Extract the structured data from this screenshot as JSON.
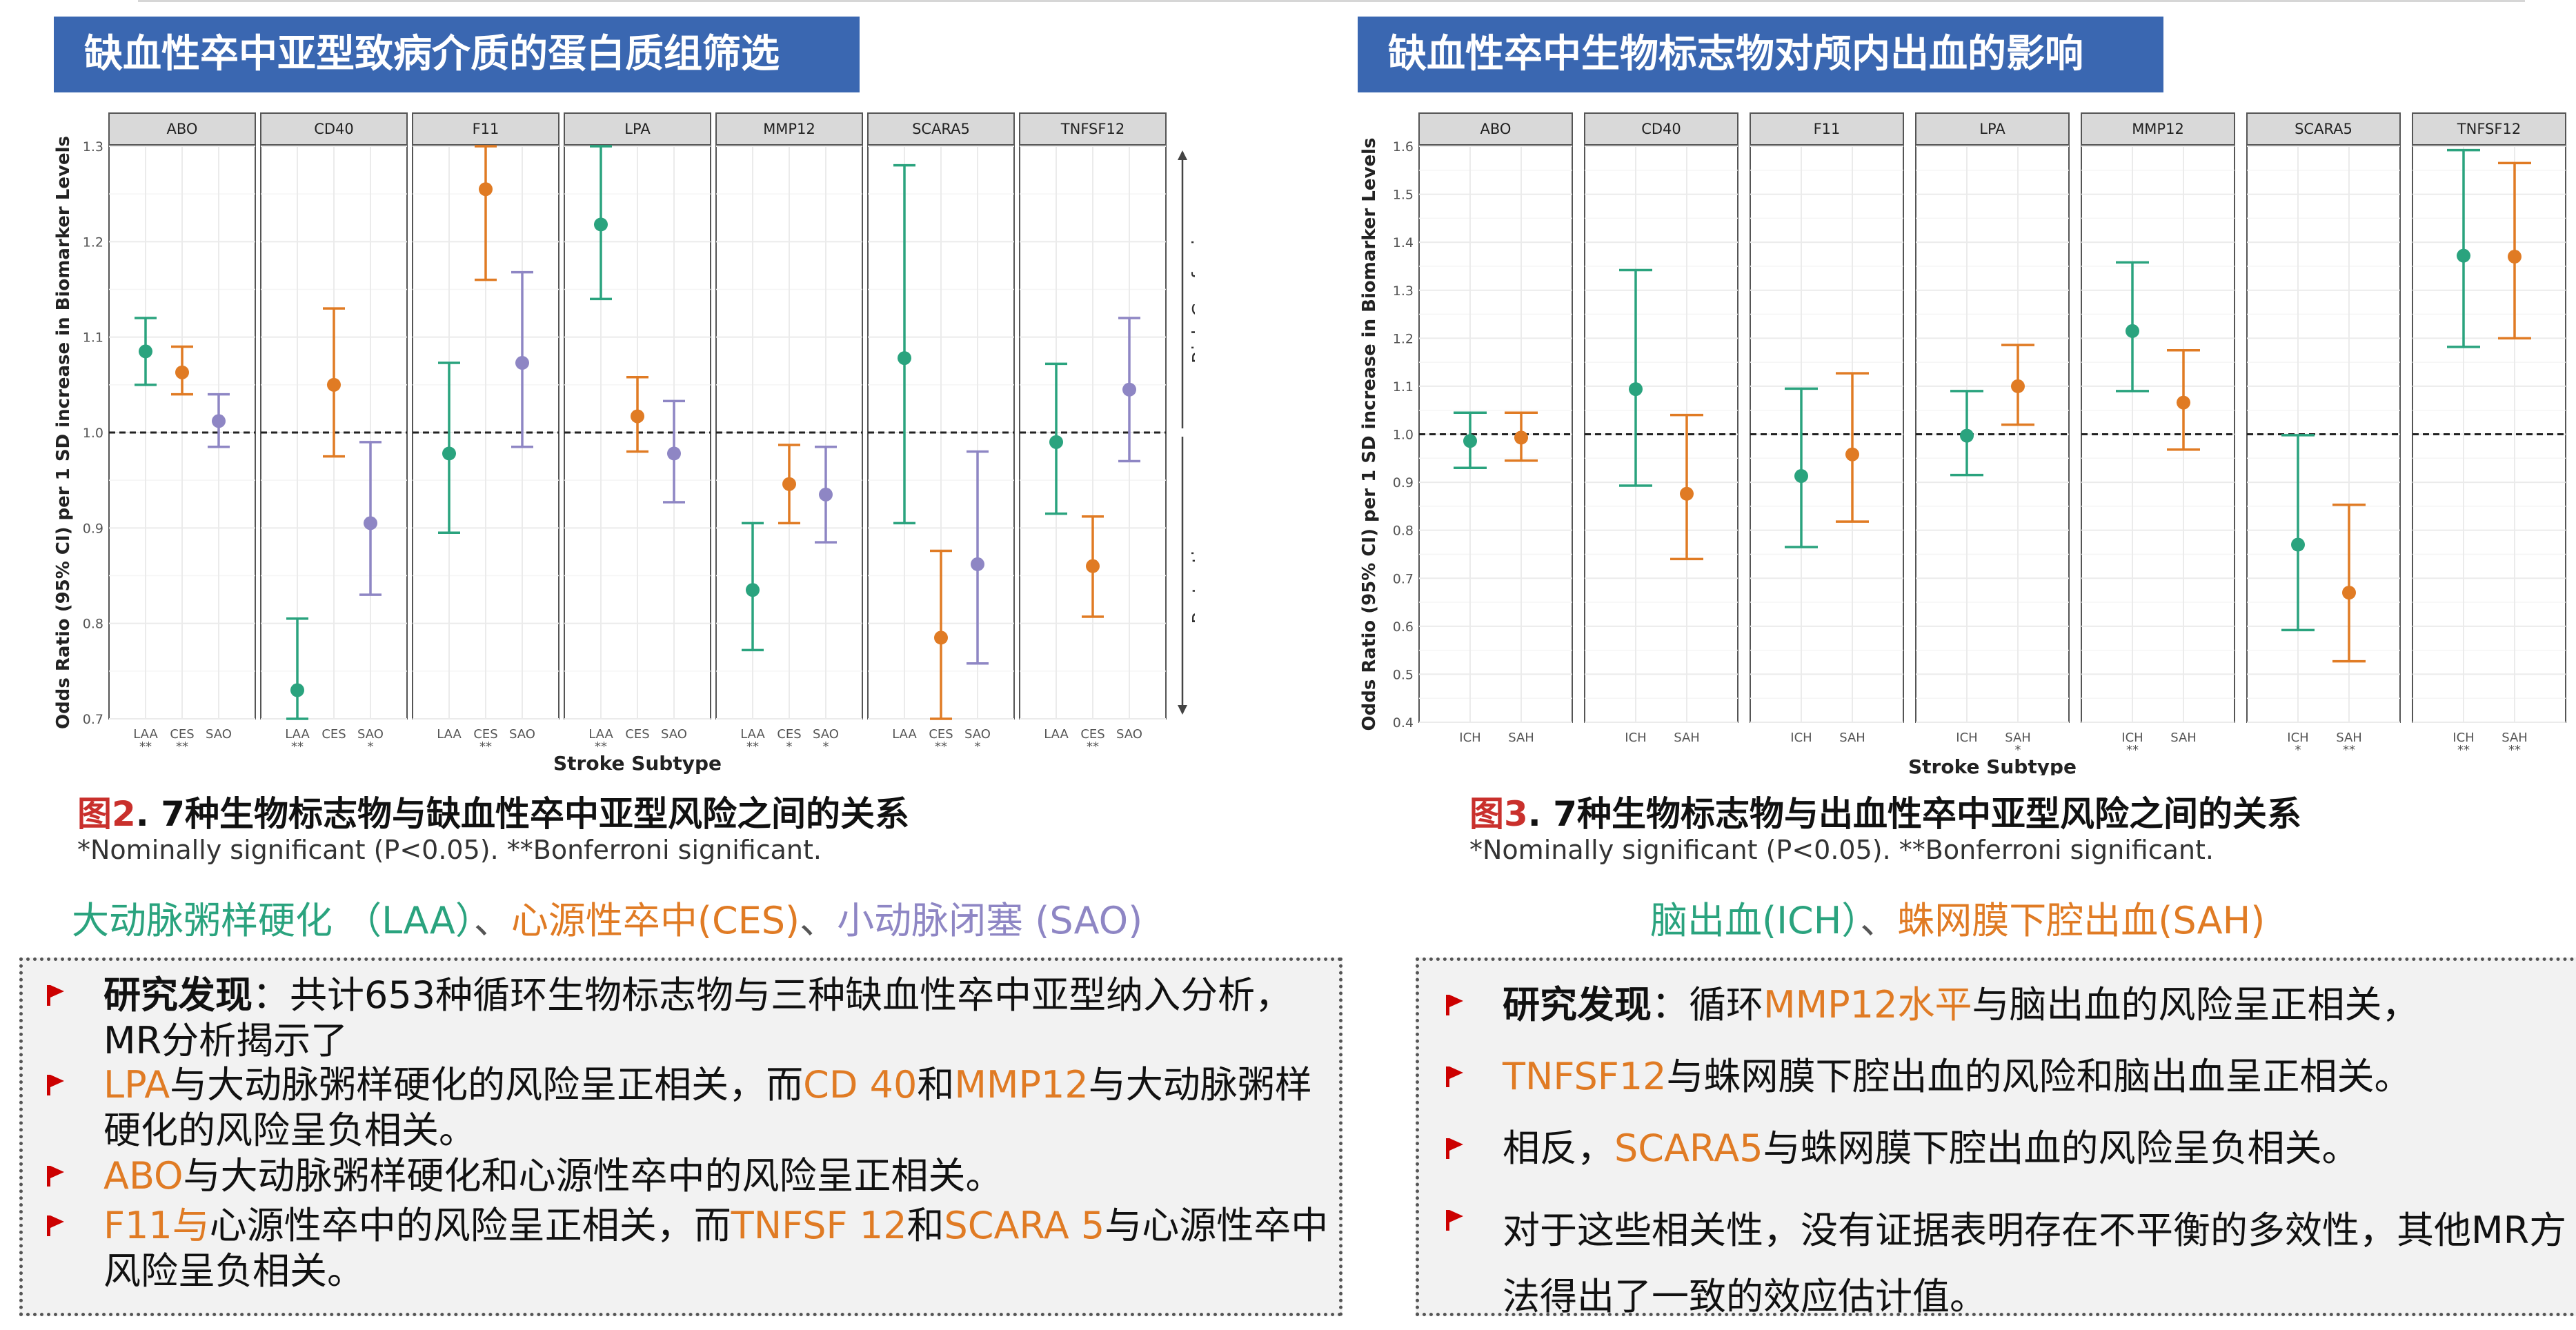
{
  "left": {
    "banner": "缺血性卒中亚型致病介质的蛋白质组筛选",
    "caption_fig": "图2",
    "caption_text": ". 7种生物标志物与缺血性卒中亚型风险之间的关系",
    "note": "*Nominally significant (P<0.05). **Bonferroni significant.",
    "legend": {
      "laa": "大动脉粥样硬化 （LAA）",
      "sep1": "、",
      "ces": "心源性卒中(CES)",
      "sep2": "、",
      "sao": "小动脉闭塞 (SAO)"
    },
    "bullets": [
      {
        "parts": [
          {
            "t": "研究发现",
            "s": "b"
          },
          {
            "t": "：共计653种循环生物标志物与三种缺血性卒中亚型纳入分析，MR分析揭示了",
            "s": "n"
          }
        ]
      },
      {
        "parts": [
          {
            "t": "LPA",
            "s": "h"
          },
          {
            "t": "与大动脉粥样硬化的风险呈正相关，而",
            "s": "n"
          },
          {
            "t": "CD 40",
            "s": "h"
          },
          {
            "t": "和",
            "s": "n"
          },
          {
            "t": "MMP12",
            "s": "h"
          },
          {
            "t": "与大动脉粥样硬化的风险呈负相关。",
            "s": "n"
          }
        ]
      },
      {
        "parts": [
          {
            "t": "ABO",
            "s": "h"
          },
          {
            "t": "与大动脉粥样硬化和心源性卒中的风险呈正相关。",
            "s": "n"
          }
        ]
      },
      {
        "parts": [
          {
            "t": "F11与",
            "s": "h"
          },
          {
            "t": "心源性卒中的风险呈正相关，而",
            "s": "n"
          },
          {
            "t": "TNFSF 12",
            "s": "h"
          },
          {
            "t": "和",
            "s": "n"
          },
          {
            "t": "SCARA 5",
            "s": "h"
          },
          {
            "t": "与心源性卒中风险呈负相关。",
            "s": "n"
          }
        ]
      }
    ]
  },
  "right": {
    "banner": "缺血性卒中生物标志物对颅内出血的影响",
    "caption_fig": "图3",
    "caption_text": ". 7种生物标志物与出血性卒中亚型风险之间的关系",
    "note": "*Nominally significant (P<0.05). **Bonferroni significant.",
    "legend": {
      "ich": "脑出血(ICH）",
      "sep1": "、",
      "sah": "蛛网膜下腔出血(SAH)"
    },
    "bullets": [
      {
        "parts": [
          {
            "t": "研究发现",
            "s": "b"
          },
          {
            "t": "：循环",
            "s": "n"
          },
          {
            "t": "MMP12水平",
            "s": "h"
          },
          {
            "t": "与脑出血的风险呈正相关，",
            "s": "n"
          }
        ]
      },
      {
        "parts": [
          {
            "t": "TNFSF12",
            "s": "h"
          },
          {
            "t": "与蛛网膜下腔出血的风险和脑出血呈正相关。",
            "s": "n"
          }
        ]
      },
      {
        "parts": [
          {
            "t": "相反，",
            "s": "n"
          },
          {
            "t": "SCARA5",
            "s": "h"
          },
          {
            "t": "与蛛网膜下腔出血的风险呈负相关。",
            "s": "n"
          }
        ]
      },
      {
        "parts": [
          {
            "t": "对于这些相关性，没有证据表明存在不平衡的多效性，其他MR方法得出了一致的效应估计值。",
            "s": "n"
          }
        ]
      }
    ]
  },
  "colors": {
    "laa": "#2aa37e",
    "ich": "#2aa37e",
    "ces": "#e07b24",
    "sah": "#e07b24",
    "sao": "#8e86c4",
    "highlight": "#e07b24",
    "banner": "#3a67b1"
  },
  "chart_data": [
    {
      "type": "forest",
      "title": "图2",
      "xlabel": "Stroke Subtype",
      "ylabel": "Odds Ratio (95% CI) per 1 SD increase in Biomarker Levels",
      "ylim": [
        0.7,
        1.3
      ],
      "yticks": [
        0.7,
        0.8,
        0.9,
        1.0,
        1.1,
        1.2,
        1.3
      ],
      "reference_line": 1.0,
      "side_labels": {
        "upper": "Risk-Conferring",
        "lower": "Protective"
      },
      "subtypes": [
        "LAA",
        "CES",
        "SAO"
      ],
      "panels": [
        {
          "name": "ABO",
          "points": [
            {
              "s": "LAA",
              "or": 1.085,
              "lo": 1.05,
              "hi": 1.12,
              "sig": "**"
            },
            {
              "s": "CES",
              "or": 1.063,
              "lo": 1.04,
              "hi": 1.09,
              "sig": "**"
            },
            {
              "s": "SAO",
              "or": 1.012,
              "lo": 0.985,
              "hi": 1.04,
              "sig": ""
            }
          ]
        },
        {
          "name": "CD40",
          "points": [
            {
              "s": "LAA",
              "or": 0.73,
              "lo": 0.66,
              "hi": 0.805,
              "sig": "**"
            },
            {
              "s": "CES",
              "or": 1.05,
              "lo": 0.975,
              "hi": 1.13,
              "sig": ""
            },
            {
              "s": "SAO",
              "or": 0.905,
              "lo": 0.83,
              "hi": 0.99,
              "sig": "*"
            }
          ]
        },
        {
          "name": "F11",
          "points": [
            {
              "s": "LAA",
              "or": 0.978,
              "lo": 0.895,
              "hi": 1.073,
              "sig": ""
            },
            {
              "s": "CES",
              "or": 1.255,
              "lo": 1.16,
              "hi": 1.36,
              "sig": "**"
            },
            {
              "s": "SAO",
              "or": 1.073,
              "lo": 0.985,
              "hi": 1.168,
              "sig": ""
            }
          ]
        },
        {
          "name": "LPA",
          "points": [
            {
              "s": "LAA",
              "or": 1.218,
              "lo": 1.14,
              "hi": 1.3,
              "sig": "**"
            },
            {
              "s": "CES",
              "or": 1.017,
              "lo": 0.98,
              "hi": 1.058,
              "sig": ""
            },
            {
              "s": "SAO",
              "or": 0.978,
              "lo": 0.927,
              "hi": 1.033,
              "sig": ""
            }
          ]
        },
        {
          "name": "MMP12",
          "points": [
            {
              "s": "LAA",
              "or": 0.835,
              "lo": 0.772,
              "hi": 0.905,
              "sig": "**"
            },
            {
              "s": "CES",
              "or": 0.946,
              "lo": 0.905,
              "hi": 0.987,
              "sig": "*"
            },
            {
              "s": "SAO",
              "or": 0.935,
              "lo": 0.885,
              "hi": 0.985,
              "sig": "*"
            }
          ]
        },
        {
          "name": "SCARA5",
          "points": [
            {
              "s": "LAA",
              "or": 1.078,
              "lo": 0.905,
              "hi": 1.28,
              "sig": ""
            },
            {
              "s": "CES",
              "or": 0.785,
              "lo": 0.7,
              "hi": 0.876,
              "sig": "**"
            },
            {
              "s": "SAO",
              "or": 0.862,
              "lo": 0.758,
              "hi": 0.98,
              "sig": "*"
            }
          ]
        },
        {
          "name": "TNFSF12",
          "points": [
            {
              "s": "LAA",
              "or": 0.99,
              "lo": 0.915,
              "hi": 1.072,
              "sig": ""
            },
            {
              "s": "CES",
              "or": 0.86,
              "lo": 0.807,
              "hi": 0.912,
              "sig": "**"
            },
            {
              "s": "SAO",
              "or": 1.045,
              "lo": 0.97,
              "hi": 1.12,
              "sig": ""
            }
          ]
        }
      ]
    },
    {
      "type": "forest",
      "title": "图3",
      "xlabel": "Stroke Subtype",
      "ylabel": "Odds Ratio (95% CI) per 1 SD increase in Biomarker Levels",
      "ylim": [
        0.4,
        1.6
      ],
      "yticks": [
        0.4,
        0.5,
        0.6,
        0.7,
        0.8,
        0.9,
        1.0,
        1.1,
        1.2,
        1.3,
        1.4,
        1.5,
        1.6
      ],
      "reference_line": 1.0,
      "subtypes": [
        "ICH",
        "SAH"
      ],
      "panels": [
        {
          "name": "ABO",
          "points": [
            {
              "s": "ICH",
              "or": 0.986,
              "lo": 0.93,
              "hi": 1.045,
              "sig": ""
            },
            {
              "s": "SAH",
              "or": 0.993,
              "lo": 0.945,
              "hi": 1.045,
              "sig": ""
            }
          ]
        },
        {
          "name": "CD40",
          "points": [
            {
              "s": "ICH",
              "or": 1.094,
              "lo": 0.893,
              "hi": 1.342,
              "sig": ""
            },
            {
              "s": "SAH",
              "or": 0.876,
              "lo": 0.74,
              "hi": 1.04,
              "sig": ""
            }
          ]
        },
        {
          "name": "F11",
          "points": [
            {
              "s": "ICH",
              "or": 0.913,
              "lo": 0.765,
              "hi": 1.095,
              "sig": ""
            },
            {
              "s": "SAH",
              "or": 0.958,
              "lo": 0.818,
              "hi": 1.127,
              "sig": ""
            }
          ]
        },
        {
          "name": "LPA",
          "points": [
            {
              "s": "ICH",
              "or": 0.997,
              "lo": 0.915,
              "hi": 1.09,
              "sig": ""
            },
            {
              "s": "SAH",
              "or": 1.1,
              "lo": 1.02,
              "hi": 1.186,
              "sig": "*"
            }
          ]
        },
        {
          "name": "MMP12",
          "points": [
            {
              "s": "ICH",
              "or": 1.215,
              "lo": 1.09,
              "hi": 1.358,
              "sig": "**"
            },
            {
              "s": "SAH",
              "or": 1.066,
              "lo": 0.968,
              "hi": 1.175,
              "sig": ""
            }
          ]
        },
        {
          "name": "SCARA5",
          "points": [
            {
              "s": "ICH",
              "or": 0.77,
              "lo": 0.592,
              "hi": 0.998,
              "sig": "*"
            },
            {
              "s": "SAH",
              "or": 0.67,
              "lo": 0.527,
              "hi": 0.853,
              "sig": "**"
            }
          ]
        },
        {
          "name": "TNFSF12",
          "points": [
            {
              "s": "ICH",
              "or": 1.372,
              "lo": 1.182,
              "hi": 1.592,
              "sig": "**"
            },
            {
              "s": "SAH",
              "or": 1.37,
              "lo": 1.2,
              "hi": 1.565,
              "sig": "**"
            }
          ]
        }
      ]
    }
  ]
}
